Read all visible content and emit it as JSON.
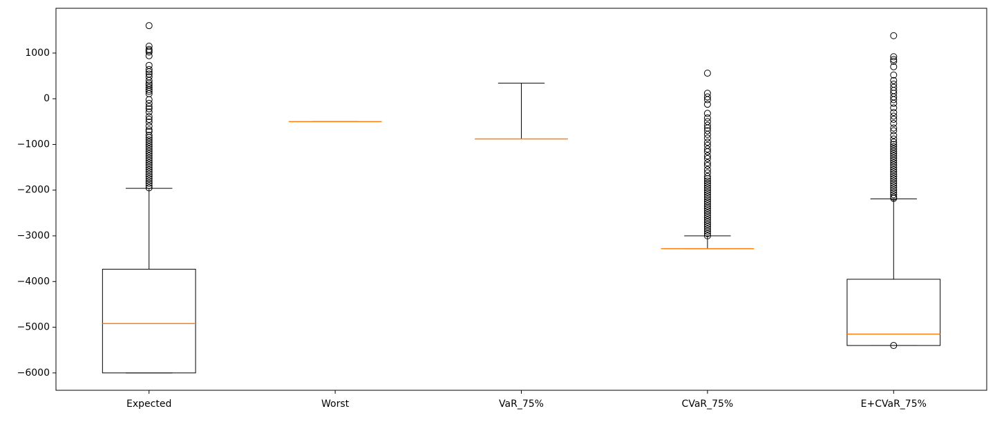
{
  "chart_data": {
    "type": "boxplot",
    "categories": [
      "Expected",
      "Worst",
      "VaR_75%",
      "CVaR_75%",
      "E+CVaR_75%"
    ],
    "boxes": [
      {
        "whislo": -6000,
        "q1": -6000,
        "median": -4920,
        "q3": -3730,
        "whishi": -1960,
        "fliers": [
          1600,
          1150,
          1080,
          1050,
          1020,
          940,
          730,
          640,
          590,
          540,
          480,
          400,
          340,
          300,
          250,
          200,
          160,
          110,
          -20,
          -100,
          -170,
          -220,
          -290,
          -390,
          -450,
          -510,
          -600,
          -680,
          -720,
          -800,
          -850,
          -900,
          -950,
          -1000,
          -1050,
          -1100,
          -1150,
          -1200,
          -1250,
          -1300,
          -1350,
          -1400,
          -1450,
          -1500,
          -1550,
          -1600,
          -1650,
          -1700,
          -1750,
          -1800,
          -1850,
          -1900,
          -1950
        ]
      },
      {
        "whislo": -500,
        "q1": -500,
        "median": -500,
        "q3": -500,
        "whishi": -500,
        "fliers": []
      },
      {
        "whislo": -880,
        "q1": -880,
        "median": -880,
        "q3": -880,
        "whishi": 340,
        "fliers": []
      },
      {
        "whislo": -3280,
        "q1": -3280,
        "median": -3280,
        "q3": -3280,
        "whishi": -3000,
        "fliers": [
          560,
          120,
          40,
          -20,
          -120,
          -320,
          -420,
          -500,
          -580,
          -640,
          -700,
          -780,
          -860,
          -950,
          -1020,
          -1100,
          -1160,
          -1250,
          -1310,
          -1400,
          -1460,
          -1550,
          -1620,
          -1700,
          -1750,
          -1800,
          -1850,
          -1900,
          -1950,
          -2000,
          -2050,
          -2100,
          -2150,
          -2200,
          -2250,
          -2300,
          -2350,
          -2400,
          -2450,
          -2500,
          -2550,
          -2600,
          -2650,
          -2700,
          -2750,
          -2800,
          -2850,
          -2900,
          -2950,
          -3000
        ]
      },
      {
        "whislo": -5400,
        "q1": -5400,
        "median": -5150,
        "q3": -3950,
        "whishi": -2190,
        "fliers": [
          1380,
          920,
          860,
          820,
          700,
          520,
          400,
          320,
          250,
          180,
          120,
          40,
          -20,
          -100,
          -200,
          -300,
          -380,
          -450,
          -540,
          -640,
          -700,
          -800,
          -880,
          -950,
          -1000,
          -1050,
          -1100,
          -1150,
          -1200,
          -1250,
          -1300,
          -1350,
          -1400,
          -1450,
          -1500,
          -1550,
          -1600,
          -1650,
          -1700,
          -1750,
          -1800,
          -1850,
          -1900,
          -1950,
          -2000,
          -2050,
          -2100,
          -2150,
          -2180,
          -5400
        ]
      }
    ],
    "ylim": [
      -6380,
      1980
    ],
    "yticks": [
      {
        "value": -6000,
        "label": "−6000"
      },
      {
        "value": -5000,
        "label": "−5000"
      },
      {
        "value": -4000,
        "label": "−4000"
      },
      {
        "value": -3000,
        "label": "−3000"
      },
      {
        "value": -2000,
        "label": "−2000"
      },
      {
        "value": -1000,
        "label": "−1000"
      },
      0,
      1000
    ],
    "box_color": "#000000",
    "median_color": "#ff7f0e"
  }
}
